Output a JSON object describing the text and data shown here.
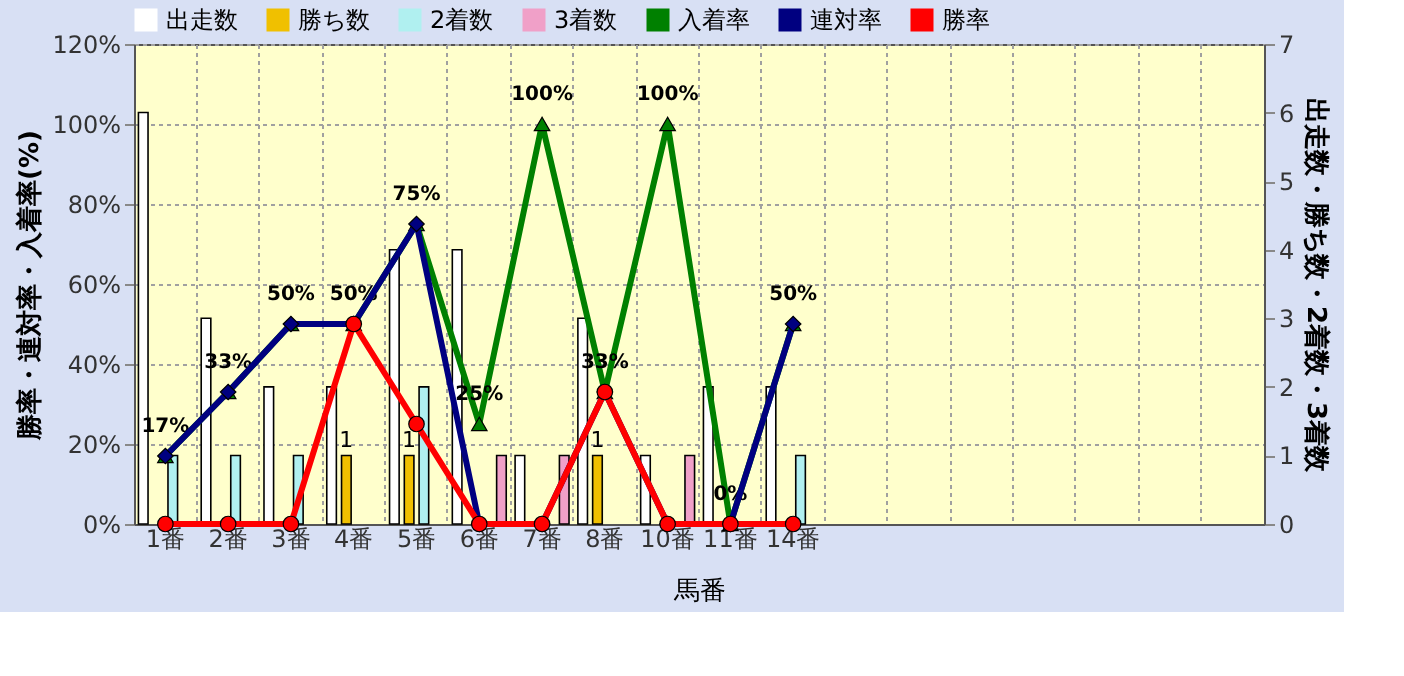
{
  "chart_data": {
    "type": "bar",
    "xlabel": "馬番",
    "ylabel": "勝率・連対率・入着率(%)",
    "y2label": "出走数・勝ち数・2着数・3着数",
    "categories": [
      "1番",
      "2番",
      "3番",
      "4番",
      "5番",
      "6番",
      "7番",
      "8番",
      "10番",
      "11番",
      "14番",
      null,
      null,
      null,
      null,
      null,
      null,
      null
    ],
    "series": [
      {
        "name": "出走数",
        "axis": "y2",
        "color": "#ffffff",
        "values": [
          6,
          3,
          2,
          2,
          4,
          4,
          1,
          3,
          1,
          2,
          2,
          null,
          null,
          null,
          null,
          null,
          null,
          null
        ]
      },
      {
        "name": "勝ち数",
        "axis": "y2",
        "color": "#f0c000",
        "values": [
          0,
          0,
          0,
          1,
          1,
          0,
          0,
          1,
          0,
          0,
          0,
          null,
          null,
          null,
          null,
          null,
          null,
          null
        ],
        "value_labels": [
          null,
          null,
          null,
          "1",
          "1",
          null,
          null,
          "1",
          null,
          null,
          null,
          null,
          null,
          null,
          null,
          null,
          null,
          null
        ]
      },
      {
        "name": "2着数",
        "axis": "y2",
        "color": "#b0f0f0",
        "values": [
          1,
          1,
          1,
          0,
          2,
          0,
          0,
          0,
          0,
          0,
          1,
          null,
          null,
          null,
          null,
          null,
          null,
          null
        ]
      },
      {
        "name": "3着数",
        "axis": "y2",
        "color": "#f0a0c8",
        "values": [
          0,
          0,
          0,
          0,
          0,
          1,
          1,
          0,
          1,
          0,
          0,
          null,
          null,
          null,
          null,
          null,
          null,
          null
        ]
      },
      {
        "name": "入着率",
        "type": "line",
        "marker": "triangle",
        "color": "#008000",
        "values": [
          17,
          33,
          50,
          50,
          75,
          25,
          100,
          33,
          100,
          0,
          50,
          null,
          null,
          null,
          null,
          null,
          null,
          null
        ],
        "value_labels": [
          "17%",
          "33%",
          "50%",
          "50%",
          "75%",
          "25%",
          "100%",
          "33%",
          "100%",
          "0%",
          "50%",
          null,
          null,
          null,
          null,
          null,
          null,
          null
        ]
      },
      {
        "name": "連対率",
        "type": "line",
        "marker": "diamond",
        "color": "#000080",
        "values": [
          17,
          33,
          50,
          50,
          75,
          0,
          0,
          33,
          0,
          0,
          50,
          null,
          null,
          null,
          null,
          null,
          null,
          null
        ]
      },
      {
        "name": "勝率",
        "type": "line",
        "marker": "circle",
        "color": "#ff0000",
        "values": [
          0,
          0,
          0,
          50,
          25,
          0,
          0,
          33,
          0,
          0,
          0,
          null,
          null,
          null,
          null,
          null,
          null,
          null
        ]
      }
    ],
    "ylim": [
      0,
      120
    ],
    "yticks": [
      {
        "value": 0,
        "label": "0%"
      },
      {
        "value": 20,
        "label": "20%"
      },
      {
        "value": 40,
        "label": "40%"
      },
      {
        "value": 60,
        "label": "60%"
      },
      {
        "value": 80,
        "label": "80%"
      },
      {
        "value": 100,
        "label": "100%"
      },
      {
        "value": 120,
        "label": "120%"
      }
    ],
    "y2lim": [
      0,
      7
    ],
    "y2ticks": [
      0,
      1,
      2,
      3,
      4,
      5,
      6,
      7
    ],
    "grid": true,
    "legend": "top"
  }
}
